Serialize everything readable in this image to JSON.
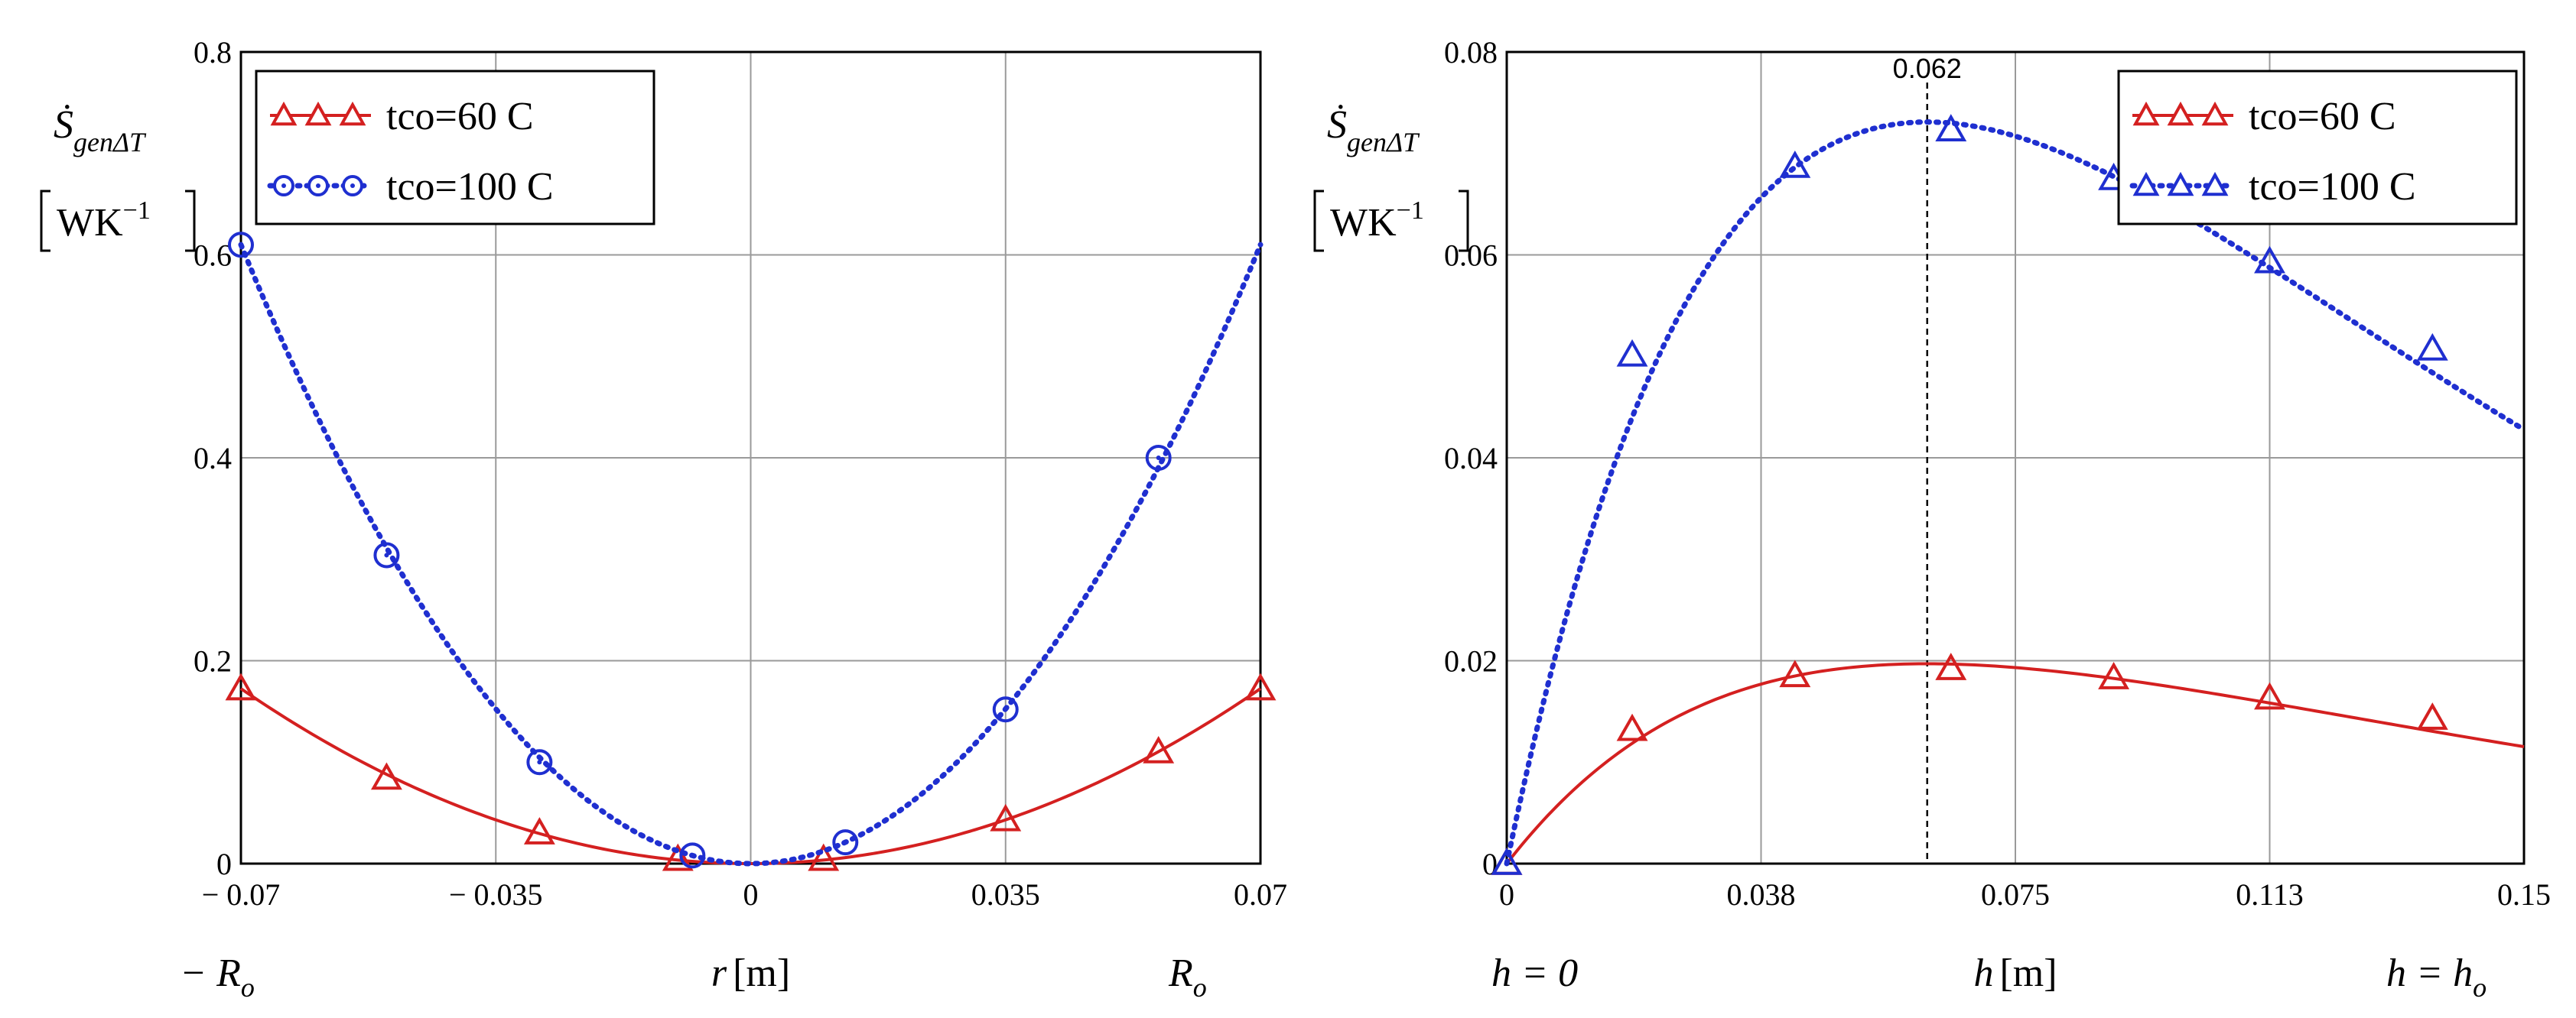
{
  "chart_data": [
    {
      "type": "line",
      "ylabel": {
        "main": "Ṡ",
        "sub": "genΔT",
        "unit": "WK",
        "unit_exp": "−1"
      },
      "xlabel": {
        "var": "r",
        "unit": "[m]"
      },
      "xticks": [
        "− 0.07",
        "− 0.035",
        "0",
        "0.035",
        "0.07"
      ],
      "xtick_values": [
        -0.07,
        -0.035,
        0,
        0.035,
        0.07
      ],
      "yticks": [
        "0",
        "0.2",
        "0.4",
        "0.6",
        "0.8"
      ],
      "ytick_values": [
        0,
        0.2,
        0.4,
        0.6,
        0.8
      ],
      "xlim": [
        -0.07,
        0.07
      ],
      "ylim": [
        0,
        0.8
      ],
      "x_extra_labels": {
        "left": "− R",
        "left_sub": "o",
        "right": "R",
        "right_sub": "o"
      },
      "grid": true,
      "legend_position": "top-left",
      "series": [
        {
          "name": "tco=60 C",
          "color": "#d42020",
          "style": "solid",
          "marker": "triangle",
          "curve": {
            "kind": "parabola",
            "a": 35.2
          },
          "markers_x": [
            -0.07,
            -0.05,
            -0.029,
            -0.01,
            0.01,
            0.035,
            0.056,
            0.07
          ],
          "markers_y": [
            0.172,
            0.084,
            0.03,
            0.004,
            0.004,
            0.043,
            0.11,
            0.172
          ]
        },
        {
          "name": "tco=100 C",
          "color": "#1f2fd0",
          "style": "dotted",
          "marker": "circle",
          "curve": {
            "kind": "parabola",
            "a": 124.5
          },
          "markers_x": [
            -0.07,
            -0.05,
            -0.029,
            -0.008,
            0.013,
            0.035,
            0.056
          ],
          "markers_y": [
            0.61,
            0.304,
            0.1,
            0.008,
            0.021,
            0.152,
            0.4
          ]
        }
      ]
    },
    {
      "type": "line",
      "ylabel": {
        "main": "Ṡ",
        "sub": "genΔT",
        "unit": "WK",
        "unit_exp": "−1"
      },
      "xlabel": {
        "var": "h",
        "unit": "[m]"
      },
      "xticks": [
        "0",
        "0.038",
        "0.075",
        "0.113",
        "0.15"
      ],
      "xtick_values": [
        0,
        0.0375,
        0.075,
        0.1125,
        0.15
      ],
      "yticks": [
        "0",
        "0.02",
        "0.04",
        "0.06",
        "0.08"
      ],
      "ytick_values": [
        0,
        0.02,
        0.04,
        0.06,
        0.08
      ],
      "xlim": [
        0,
        0.15
      ],
      "ylim": [
        0,
        0.08
      ],
      "x_extra_labels": {
        "left": "h = 0",
        "right": "h = h",
        "right_sub": "o"
      },
      "vline": {
        "x": 0.062,
        "label": "0.062"
      },
      "grid": true,
      "legend_position": "top-right",
      "series": [
        {
          "name": "tco=60 C",
          "color": "#d42020",
          "style": "solid",
          "marker": "triangle",
          "curve": {
            "kind": "peak",
            "ymax": 0.0197,
            "xpeak": 0.062
          },
          "markers_x": [
            0.0,
            0.0185,
            0.0425,
            0.0655,
            0.0895,
            0.1125,
            0.1365
          ],
          "markers_y": [
            0.0,
            0.0132,
            0.0185,
            0.0192,
            0.0183,
            0.0163,
            0.0143
          ]
        },
        {
          "name": "tco=100 C",
          "color": "#1f2fd0",
          "style": "dotted",
          "marker": "triangle",
          "curve": {
            "kind": "peak",
            "ymax": 0.0731,
            "xpeak": 0.062
          },
          "markers_x": [
            0.0,
            0.0185,
            0.0425,
            0.0655,
            0.0895,
            0.1125,
            0.1365
          ],
          "markers_y": [
            0.0,
            0.0501,
            0.0687,
            0.0723,
            0.0675,
            0.0593,
            0.0507
          ]
        }
      ]
    }
  ]
}
